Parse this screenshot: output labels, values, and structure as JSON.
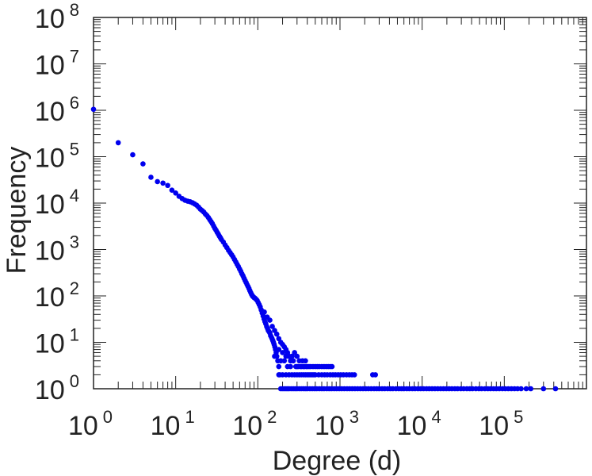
{
  "chart_data": {
    "type": "scatter",
    "title": "",
    "xlabel": "Degree (d)",
    "ylabel": "Frequency",
    "xscale": "log",
    "yscale": "log",
    "xlim": [
      1,
      1000000
    ],
    "ylim": [
      1,
      100000000
    ],
    "grid": false,
    "legend": "none",
    "marker_color": "#0000ee",
    "x_ticks": [
      {
        "base": "10",
        "exp": "0"
      },
      {
        "base": "10",
        "exp": "1"
      },
      {
        "base": "10",
        "exp": "2"
      },
      {
        "base": "10",
        "exp": "3"
      },
      {
        "base": "10",
        "exp": "4"
      },
      {
        "base": "10",
        "exp": "5"
      }
    ],
    "y_ticks": [
      {
        "base": "10",
        "exp": "0"
      },
      {
        "base": "10",
        "exp": "1"
      },
      {
        "base": "10",
        "exp": "2"
      },
      {
        "base": "10",
        "exp": "3"
      },
      {
        "base": "10",
        "exp": "4"
      },
      {
        "base": "10",
        "exp": "5"
      },
      {
        "base": "10",
        "exp": "6"
      },
      {
        "base": "10",
        "exp": "7"
      },
      {
        "base": "10",
        "exp": "8"
      }
    ],
    "points": [
      [
        1,
        1050000
      ],
      [
        2,
        200000
      ],
      [
        3,
        110000
      ],
      [
        4,
        70000
      ],
      [
        5,
        36000
      ],
      [
        6,
        29000
      ],
      [
        7,
        27000
      ],
      [
        8,
        24000
      ],
      [
        9,
        19000
      ],
      [
        10,
        16500
      ],
      [
        11,
        14000
      ],
      [
        12,
        12500
      ],
      [
        13,
        11500
      ],
      [
        14,
        11000
      ],
      [
        15,
        10700
      ],
      [
        16,
        10200
      ],
      [
        17,
        9600
      ],
      [
        18,
        9000
      ],
      [
        19,
        8200
      ],
      [
        20,
        7400
      ],
      [
        21,
        6900
      ],
      [
        22,
        6400
      ],
      [
        23,
        5800
      ],
      [
        24,
        5400
      ],
      [
        25,
        4900
      ],
      [
        26,
        4400
      ],
      [
        27,
        4000
      ],
      [
        28,
        3600
      ],
      [
        29,
        3200
      ],
      [
        30,
        2850
      ],
      [
        31,
        2600
      ],
      [
        32,
        2350
      ],
      [
        33,
        2150
      ],
      [
        34,
        1950
      ],
      [
        35,
        1800
      ],
      [
        36,
        1650
      ],
      [
        38,
        1450
      ],
      [
        40,
        1250
      ],
      [
        42,
        1100
      ],
      [
        44,
        960
      ],
      [
        46,
        860
      ],
      [
        48,
        770
      ],
      [
        50,
        690
      ],
      [
        52,
        610
      ],
      [
        54,
        540
      ],
      [
        56,
        480
      ],
      [
        58,
        430
      ],
      [
        60,
        380
      ],
      [
        62,
        340
      ],
      [
        64,
        300
      ],
      [
        66,
        270
      ],
      [
        68,
        240
      ],
      [
        70,
        215
      ],
      [
        72,
        195
      ],
      [
        74,
        175
      ],
      [
        76,
        160
      ],
      [
        78,
        145
      ],
      [
        80,
        130
      ],
      [
        82,
        118
      ],
      [
        84,
        108
      ],
      [
        86,
        100
      ],
      [
        88,
        96
      ],
      [
        90,
        92
      ],
      [
        92,
        90
      ],
      [
        95,
        85
      ],
      [
        98,
        80
      ],
      [
        101,
        72
      ],
      [
        104,
        65
      ],
      [
        107,
        58
      ],
      [
        110,
        50
      ],
      [
        113,
        43
      ],
      [
        116,
        37
      ],
      [
        119,
        32
      ],
      [
        122,
        28
      ],
      [
        125,
        25
      ],
      [
        128,
        22
      ],
      [
        131,
        20
      ],
      [
        134,
        18
      ],
      [
        137,
        17
      ],
      [
        140,
        16
      ],
      [
        143,
        14
      ],
      [
        146,
        13
      ],
      [
        149,
        12
      ],
      [
        152,
        11
      ],
      [
        155,
        10
      ],
      [
        158,
        9
      ],
      [
        161,
        8
      ],
      [
        164,
        7
      ],
      [
        167,
        6
      ],
      [
        170,
        5
      ],
      [
        175,
        4
      ],
      [
        180,
        3
      ],
      [
        185,
        2
      ],
      [
        120,
        45
      ],
      [
        130,
        35
      ],
      [
        140,
        30
      ],
      [
        150,
        22
      ],
      [
        160,
        18
      ],
      [
        170,
        15
      ],
      [
        180,
        12
      ],
      [
        190,
        10
      ],
      [
        200,
        9
      ],
      [
        210,
        8
      ],
      [
        220,
        7
      ],
      [
        230,
        6
      ],
      [
        240,
        5
      ],
      [
        250,
        4
      ],
      [
        270,
        4
      ],
      [
        300,
        3
      ],
      [
        330,
        3
      ],
      [
        360,
        3
      ],
      [
        390,
        3
      ],
      [
        420,
        3
      ],
      [
        180,
        7
      ],
      [
        200,
        6
      ],
      [
        220,
        5
      ],
      [
        260,
        5
      ],
      [
        280,
        6
      ],
      [
        300,
        5
      ],
      [
        320,
        4
      ],
      [
        350,
        4
      ],
      [
        380,
        4
      ],
      [
        160,
        5
      ],
      [
        190,
        4
      ],
      [
        210,
        4
      ],
      [
        230,
        3
      ],
      [
        250,
        3
      ],
      [
        290,
        3
      ],
      [
        310,
        3
      ],
      [
        340,
        3
      ],
      [
        370,
        3
      ],
      [
        400,
        3
      ],
      [
        440,
        3
      ],
      [
        470,
        3
      ],
      [
        500,
        3
      ],
      [
        530,
        3
      ],
      [
        560,
        3
      ],
      [
        600,
        3
      ],
      [
        640,
        3
      ],
      [
        680,
        3
      ],
      [
        720,
        3
      ],
      [
        760,
        3
      ],
      [
        800,
        3
      ],
      [
        180,
        2
      ],
      [
        200,
        2
      ],
      [
        220,
        2
      ],
      [
        240,
        2
      ],
      [
        260,
        2
      ],
      [
        280,
        2
      ],
      [
        300,
        2
      ],
      [
        320,
        2
      ],
      [
        340,
        2
      ],
      [
        360,
        2
      ],
      [
        380,
        2
      ],
      [
        400,
        2
      ],
      [
        420,
        2
      ],
      [
        440,
        2
      ],
      [
        460,
        2
      ],
      [
        480,
        2
      ],
      [
        500,
        2
      ],
      [
        550,
        2
      ],
      [
        600,
        2
      ],
      [
        650,
        2
      ],
      [
        700,
        2
      ],
      [
        760,
        2
      ],
      [
        820,
        2
      ],
      [
        880,
        2
      ],
      [
        950,
        2
      ],
      [
        1020,
        2
      ],
      [
        1100,
        2
      ],
      [
        1200,
        2
      ],
      [
        1300,
        2
      ],
      [
        1400,
        2
      ],
      [
        1500,
        2
      ],
      [
        2500,
        2
      ],
      [
        2700,
        2
      ],
      [
        190,
        1
      ],
      [
        200,
        1
      ],
      [
        210,
        1
      ],
      [
        220,
        1
      ],
      [
        230,
        1
      ],
      [
        240,
        1
      ],
      [
        255,
        1
      ],
      [
        270,
        1
      ],
      [
        285,
        1
      ],
      [
        300,
        1
      ],
      [
        320,
        1
      ],
      [
        340,
        1
      ],
      [
        360,
        1
      ],
      [
        380,
        1
      ],
      [
        400,
        1
      ],
      [
        430,
        1
      ],
      [
        460,
        1
      ],
      [
        490,
        1
      ],
      [
        520,
        1
      ],
      [
        560,
        1
      ],
      [
        600,
        1
      ],
      [
        640,
        1
      ],
      [
        690,
        1
      ],
      [
        740,
        1
      ],
      [
        790,
        1
      ],
      [
        850,
        1
      ],
      [
        910,
        1
      ],
      [
        980,
        1
      ],
      [
        1050,
        1
      ],
      [
        1130,
        1
      ],
      [
        1220,
        1
      ],
      [
        1310,
        1
      ],
      [
        1410,
        1
      ],
      [
        1520,
        1
      ],
      [
        1640,
        1
      ],
      [
        1770,
        1
      ],
      [
        1910,
        1
      ],
      [
        2060,
        1
      ],
      [
        2220,
        1
      ],
      [
        2400,
        1
      ],
      [
        2600,
        1
      ],
      [
        2800,
        1
      ],
      [
        3000,
        1
      ],
      [
        3250,
        1
      ],
      [
        3500,
        1
      ],
      [
        3800,
        1
      ],
      [
        4100,
        1
      ],
      [
        4400,
        1
      ],
      [
        4800,
        1
      ],
      [
        5200,
        1
      ],
      [
        5600,
        1
      ],
      [
        6000,
        1
      ],
      [
        6500,
        1
      ],
      [
        7000,
        1
      ],
      [
        7600,
        1
      ],
      [
        8200,
        1
      ],
      [
        8900,
        1
      ],
      [
        9600,
        1
      ],
      [
        10400,
        1
      ],
      [
        11300,
        1
      ],
      [
        12200,
        1
      ],
      [
        13200,
        1
      ],
      [
        14300,
        1
      ],
      [
        15500,
        1
      ],
      [
        16800,
        1
      ],
      [
        18200,
        1
      ],
      [
        19700,
        1
      ],
      [
        21300,
        1
      ],
      [
        23000,
        1
      ],
      [
        25000,
        1
      ],
      [
        27000,
        1
      ],
      [
        29500,
        1
      ],
      [
        32000,
        1
      ],
      [
        35000,
        1
      ],
      [
        38000,
        1
      ],
      [
        41000,
        1
      ],
      [
        45000,
        1
      ],
      [
        49000,
        1
      ],
      [
        53000,
        1
      ],
      [
        58000,
        1
      ],
      [
        63000,
        1
      ],
      [
        68000,
        1
      ],
      [
        74000,
        1
      ],
      [
        80000,
        1
      ],
      [
        87000,
        1
      ],
      [
        95000,
        1
      ],
      [
        103000,
        1
      ],
      [
        112000,
        1
      ],
      [
        122000,
        1
      ],
      [
        133000,
        1
      ],
      [
        145000,
        1
      ],
      [
        160000,
        1
      ],
      [
        185000,
        1
      ],
      [
        210000,
        1
      ],
      [
        300000,
        1
      ],
      [
        420000,
        1
      ]
    ]
  }
}
